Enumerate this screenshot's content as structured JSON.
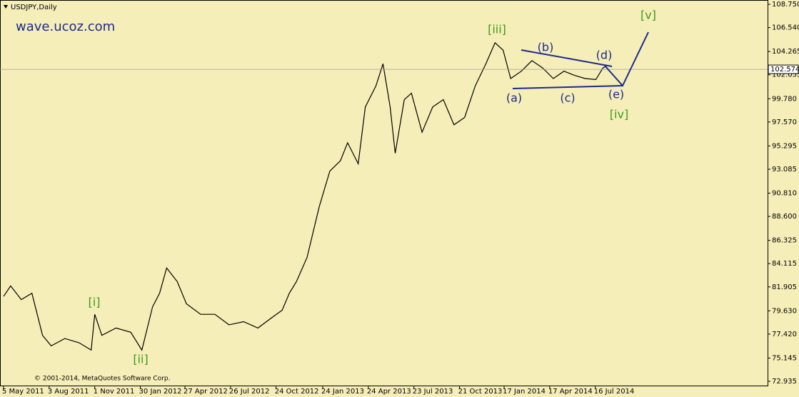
{
  "chart_data": {
    "type": "line",
    "title": "USDJPY,Daily",
    "watermark": "wave.ucoz.com",
    "copyright": "© 2001-2014, MetaQuotes Software Corp.",
    "color": "#000000",
    "current_price": 102.574,
    "annotations": [
      "[i]",
      "[ii]",
      "[iii]",
      "[iv]",
      "[v]",
      "(a)",
      "(b)",
      "(c)",
      "(d)",
      "(e)"
    ],
    "x": [
      "5 May 2011",
      "19 May 2011",
      "9 Jun 2011",
      "30 Jun 2011",
      "21 Jul 2011",
      "7 Aug 2011",
      "3 Sep 2011",
      "1 Oct 2011",
      "25 Oct 2011",
      "1 Nov 2011",
      "15 Nov 2011",
      "13 Dec 2011",
      "11 Jan 2012",
      "2 Feb 2012",
      "23 Feb 2012",
      "8 Mar 2012",
      "22 Mar 2012",
      "12 Apr 2012",
      "30 Apr 2012",
      "28 May 2012",
      "25 Jun 2012",
      "23 Jul 2012",
      "21 Aug 2012",
      "18 Sep 2012",
      "16 Oct 2012",
      "5 Nov 2012",
      "19 Nov 2012",
      "3 Dec 2012",
      "24 Dec 2012",
      "17 Jan 2013",
      "7 Feb 2013",
      "28 Feb 2013",
      "14 Mar 2013",
      "4 Apr 2013",
      "18 Apr 2013",
      "9 May 2013",
      "23 May 2013",
      "6 Jun 2013",
      "16 Jun 2013",
      "4 Jul 2013",
      "18 Jul 2013",
      "8 Aug 2013",
      "29 Aug 2013",
      "19 Sep 2013",
      "10 Oct 2013",
      "31 Oct 2013",
      "21 Nov 2013",
      "12 Dec 2013",
      "30 Dec 2013",
      "15 Jan 2014",
      "30 Jan 2014",
      "20 Feb 2014",
      "13 Mar 2014",
      "3 Apr 2014",
      "24 Apr 2014",
      "15 May 2014",
      "5 Jun 2014",
      "26 Jun 2014",
      "17 Jul 2014",
      "31 Jul 2014",
      "7 Aug 2014"
    ],
    "values": [
      81.0,
      82.0,
      80.7,
      81.3,
      77.3,
      76.3,
      77.0,
      76.6,
      75.9,
      79.3,
      77.3,
      78.0,
      77.6,
      75.9,
      80.0,
      81.3,
      83.7,
      82.4,
      80.3,
      79.3,
      79.3,
      78.3,
      78.6,
      78.0,
      79.0,
      79.7,
      81.3,
      82.4,
      84.7,
      89.5,
      92.9,
      93.9,
      95.6,
      93.6,
      99.0,
      101.0,
      103.1,
      99.0,
      94.6,
      99.7,
      100.3,
      96.6,
      99.0,
      99.7,
      97.3,
      98.0,
      101.0,
      103.1,
      105.1,
      104.4,
      101.7,
      102.4,
      103.4,
      102.7,
      101.7,
      102.4,
      102.0,
      101.7,
      101.6,
      102.7,
      102.9
    ],
    "xlim": [
      "28 Apr 2011",
      "21 Jun 2015"
    ],
    "xticks": [
      "5 May 2011",
      "3 Aug 2011",
      "1 Nov 2011",
      "30 Jan 2012",
      "27 Apr 2012",
      "26 Jul 2012",
      "24 Oct 2012",
      "24 Jan 2013",
      "24 Apr 2013",
      "23 Jul 2013",
      "21 Oct 2013",
      "17 Jan 2014",
      "17 Apr 2014",
      "16 Jul 2014"
    ],
    "ylim": [
      72.53,
      109.16
    ],
    "yticks": [
      {
        "value": 108.75,
        "label": "108.750"
      },
      {
        "value": 106.54,
        "label": "106.540"
      },
      104.265,
      102.055,
      {
        "value": 99.78,
        "label": "99.780"
      },
      {
        "value": 97.57,
        "label": "97.570"
      },
      95.295,
      93.085,
      {
        "value": 90.81,
        "label": "90.810"
      },
      {
        "value": 88.6,
        "label": "88.600"
      },
      86.325,
      84.115,
      81.905,
      {
        "value": 79.63,
        "label": "79.630"
      },
      {
        "value": 77.42,
        "label": "77.420"
      },
      75.145,
      72.935
    ]
  }
}
